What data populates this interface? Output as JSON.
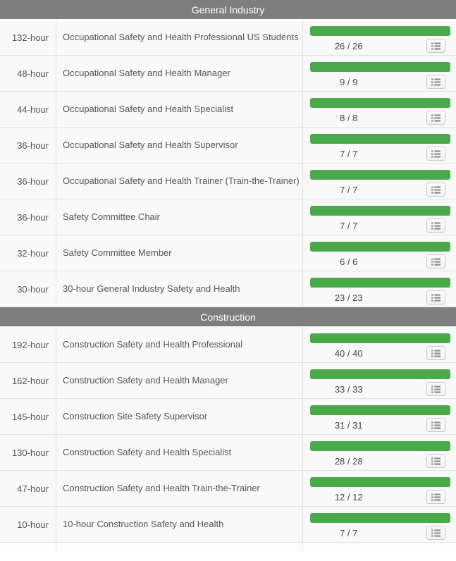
{
  "colors": {
    "section_header_bg": "#7e7e7e",
    "section_header_text": "#ffffff",
    "row_bg": "#f9f9f9",
    "border": "#e3e3e3",
    "progress_green": "#4aa94a",
    "row_text": "#555555",
    "count_text": "#444444"
  },
  "icons": {
    "row_action": "list-icon"
  },
  "sections": [
    {
      "title": "General Industry",
      "rows": [
        {
          "duration": "132-hour",
          "title": "Occupational Safety and Health Professional US Students",
          "count": "26 / 26",
          "progress_percent": 100
        },
        {
          "duration": "48-hour",
          "title": "Occupational Safety and Health Manager",
          "count": "9 / 9",
          "progress_percent": 100
        },
        {
          "duration": "44-hour",
          "title": "Occupational Safety and Health Specialist",
          "count": "8 / 8",
          "progress_percent": 100
        },
        {
          "duration": "36-hour",
          "title": "Occupational Safety and Health Supervisor",
          "count": "7 / 7",
          "progress_percent": 100
        },
        {
          "duration": "36-hour",
          "title": "Occupational Safety and Health Trainer (Train-the-Trainer)",
          "count": "7 / 7",
          "progress_percent": 100
        },
        {
          "duration": "36-hour",
          "title": "Safety Committee Chair",
          "count": "7 / 7",
          "progress_percent": 100
        },
        {
          "duration": "32-hour",
          "title": "Safety Committee Member",
          "count": "6 / 6",
          "progress_percent": 100
        },
        {
          "duration": "30-hour",
          "title": "30-hour General Industry Safety and Health",
          "count": "23 / 23",
          "progress_percent": 100
        }
      ]
    },
    {
      "title": "Construction",
      "rows": [
        {
          "duration": "192-hour",
          "title": "Construction Safety and Health Professional",
          "count": "40 / 40",
          "progress_percent": 100
        },
        {
          "duration": "162-hour",
          "title": "Construction Safety and Health Manager",
          "count": "33 / 33",
          "progress_percent": 100
        },
        {
          "duration": "145-hour",
          "title": "Construction Site Safety Supervisor",
          "count": "31 / 31",
          "progress_percent": 100
        },
        {
          "duration": "130-hour",
          "title": "Construction Safety and Health Specialist",
          "count": "28 / 28",
          "progress_percent": 100
        },
        {
          "duration": "47-hour",
          "title": "Construction Safety and Health Train-the-Trainer",
          "count": "12 / 12",
          "progress_percent": 100
        },
        {
          "duration": "10-hour",
          "title": "10-hour Construction Safety and Health",
          "count": "7 / 7",
          "progress_percent": 100
        }
      ]
    }
  ]
}
